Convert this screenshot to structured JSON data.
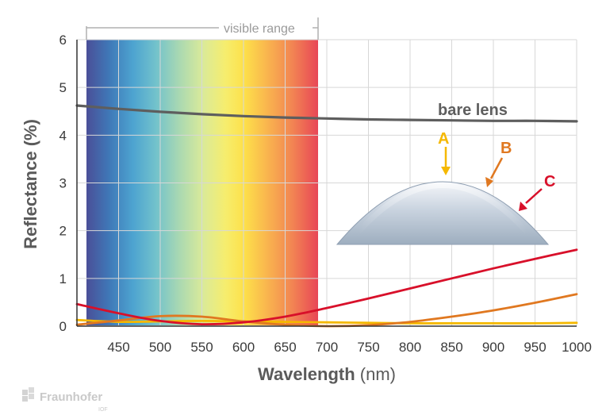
{
  "chart_data": {
    "type": "line",
    "xlabel": "Wavelength",
    "xlabel_unit": "(nm)",
    "ylabel": "Reflectance (%)",
    "xlim": [
      400,
      1000
    ],
    "ylim": [
      0,
      6
    ],
    "x_ticks": [
      450,
      500,
      550,
      600,
      650,
      700,
      750,
      800,
      850,
      900,
      950,
      1000
    ],
    "y_ticks": [
      0,
      1,
      2,
      3,
      4,
      5,
      6
    ],
    "grid": true,
    "visible_range": {
      "label": "visible range",
      "from": 410,
      "to": 690
    },
    "series": [
      {
        "name": "bare lens",
        "color": "#5e5e5e",
        "x": [
          400,
          450,
          500,
          550,
          600,
          650,
          700,
          750,
          800,
          850,
          900,
          950,
          1000
        ],
        "y": [
          4.62,
          4.55,
          4.49,
          4.44,
          4.4,
          4.37,
          4.35,
          4.33,
          4.32,
          4.31,
          4.3,
          4.3,
          4.29
        ]
      },
      {
        "name": "A",
        "color": "#f5b800",
        "x": [
          400,
          450,
          500,
          550,
          600,
          650,
          700,
          750,
          800,
          850,
          900,
          950,
          1000
        ],
        "y": [
          0.13,
          0.09,
          0.1,
          0.11,
          0.1,
          0.09,
          0.08,
          0.07,
          0.06,
          0.06,
          0.06,
          0.06,
          0.07
        ]
      },
      {
        "name": "B",
        "color": "#e07820",
        "x": [
          400,
          450,
          500,
          550,
          600,
          650,
          700,
          750,
          800,
          850,
          900,
          950,
          1000
        ],
        "y": [
          0.03,
          0.12,
          0.21,
          0.2,
          0.1,
          0.03,
          0.0,
          0.02,
          0.09,
          0.2,
          0.33,
          0.49,
          0.67
        ]
      },
      {
        "name": "C",
        "color": "#d8102a",
        "x": [
          400,
          450,
          500,
          550,
          600,
          650,
          700,
          750,
          800,
          850,
          900,
          950,
          1000
        ],
        "y": [
          0.46,
          0.27,
          0.11,
          0.04,
          0.08,
          0.2,
          0.38,
          0.58,
          0.79,
          1.0,
          1.21,
          1.41,
          1.6
        ]
      }
    ],
    "annotations": [
      {
        "text": "bare lens",
        "color": "#5e5e5e"
      },
      {
        "text": "A",
        "color": "#f5b800"
      },
      {
        "text": "B",
        "color": "#e07820"
      },
      {
        "text": "C",
        "color": "#d8102a"
      }
    ]
  },
  "logo": {
    "name": "Fraunhofer",
    "sub": "IOF",
    "color": "#c9c9c9"
  }
}
